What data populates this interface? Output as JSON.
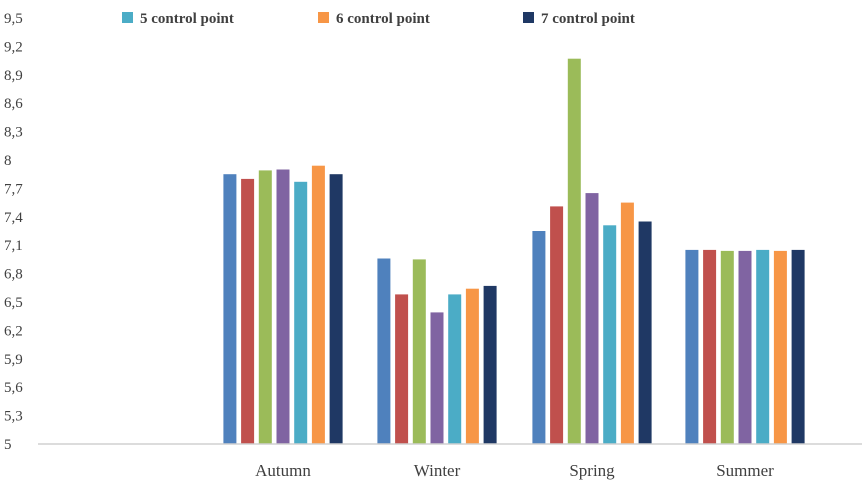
{
  "chart_data": {
    "type": "bar",
    "title": "",
    "xlabel": "",
    "ylabel": "",
    "categories": [
      "Autumn",
      "Winter",
      "Spring",
      "Summer"
    ],
    "ylim": [
      5,
      9.5
    ],
    "yticks": [
      "5",
      "5,3",
      "5,6",
      "5,9",
      "6,2",
      "6,5",
      "6,8",
      "7,1",
      "7,4",
      "7,7",
      "8",
      "8,3",
      "8,6",
      "8,9",
      "9,2",
      "9,5"
    ],
    "grid": false,
    "legend_position": "top",
    "series": [
      {
        "values": [
          7.85,
          6.96,
          7.25,
          7.05
        ],
        "color": "#4f81bd"
      },
      {
        "values": [
          7.8,
          6.58,
          7.51,
          7.05
        ],
        "color": "#c0504d"
      },
      {
        "values": [
          7.89,
          6.95,
          9.07,
          7.04
        ],
        "color": "#9bbb59"
      },
      {
        "values": [
          7.9,
          6.39,
          7.65,
          7.04
        ],
        "color": "#8064a2"
      },
      {
        "name": "5 control point",
        "values": [
          7.77,
          6.58,
          7.31,
          7.05
        ],
        "color": "#4bacc6"
      },
      {
        "name": "6 control point",
        "values": [
          7.94,
          6.64,
          7.55,
          7.04
        ],
        "color": "#f79646"
      },
      {
        "name": "7 control point",
        "values": [
          7.85,
          6.67,
          7.35,
          7.05
        ],
        "color": "#1f3864"
      }
    ]
  }
}
